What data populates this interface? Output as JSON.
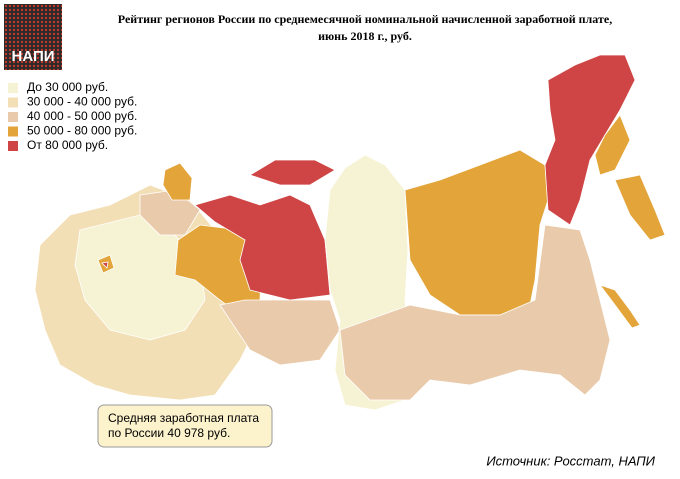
{
  "logo": "НАПИ",
  "header": {
    "title_line1": "Рейтинг регионов России по среднемесячной номинальной начисленной заработной плате,",
    "title_line2": "июнь 2018 г., руб."
  },
  "legend": {
    "items": [
      {
        "label": "До 30 000 руб.",
        "color": "#f6f3d4"
      },
      {
        "label": "30 000 - 40 000 руб.",
        "color": "#f3dfb5"
      },
      {
        "label": "40 000 - 50 000 руб.",
        "color": "#e9cbab"
      },
      {
        "label": "50 000 - 80 000 руб.",
        "color": "#e3a43a"
      },
      {
        "label": "От 80 000 руб.",
        "color": "#cf4545"
      }
    ]
  },
  "note": {
    "line1": "Средняя заработная плата",
    "line2": "по России 40 978 руб."
  },
  "source": "Источник: Росстат, НАПИ"
}
